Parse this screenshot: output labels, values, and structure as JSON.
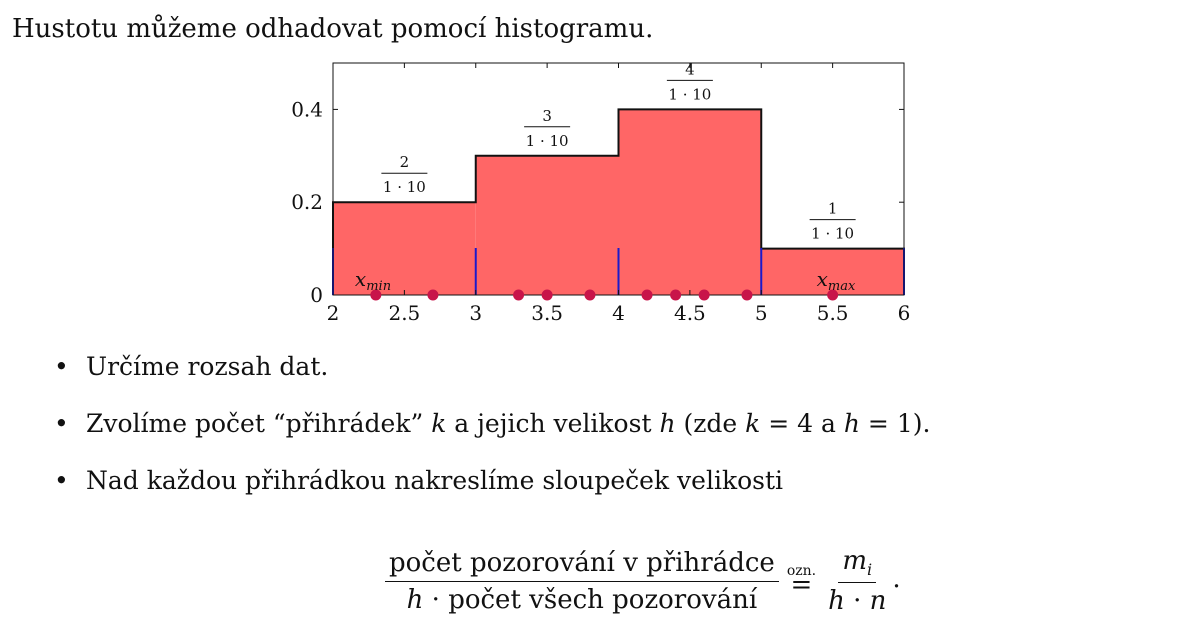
{
  "intro": "Hustotu můžeme odhadovat pomocí histogramu.",
  "chart_data": {
    "type": "bar",
    "bins": [
      {
        "from": 2,
        "to": 3,
        "value": 0.2,
        "numerator": "2",
        "denominator": "1 · 10"
      },
      {
        "from": 3,
        "to": 4,
        "value": 0.3,
        "numerator": "3",
        "denominator": "1 · 10"
      },
      {
        "from": 4,
        "to": 5,
        "value": 0.4,
        "numerator": "4",
        "denominator": "1 · 10"
      },
      {
        "from": 5,
        "to": 6,
        "value": 0.1,
        "numerator": "1",
        "denominator": "1 · 10"
      }
    ],
    "points": [
      2.3,
      2.7,
      3.3,
      3.5,
      3.8,
      4.2,
      4.4,
      4.6,
      4.9,
      5.5
    ],
    "xlim": [
      2,
      6
    ],
    "ylim": [
      0,
      0.5
    ],
    "xticks": [
      "2",
      "2.5",
      "3",
      "3.5",
      "4",
      "4.5",
      "5",
      "5.5",
      "6"
    ],
    "yticks": [
      "0",
      "0.2",
      "0.4"
    ],
    "annotations": {
      "xmin": {
        "symbol": "x",
        "sub": "min",
        "at": 2
      },
      "xmax": {
        "symbol": "x",
        "sub": "max",
        "at": 6
      }
    },
    "colors": {
      "bar": "#ff6666",
      "point": "#c8144a",
      "divider": "#1a1acc"
    }
  },
  "bullets": [
    {
      "text": "Určíme rozsah dat."
    },
    {
      "pre": "Zvolíme počet “přihrádek” ",
      "k": "k",
      "mid1": " a jejich velikost ",
      "h": "h",
      "mid2": " (zde ",
      "k2": "k",
      "eq1": " = 4 a ",
      "h2": "h",
      "eq2": " = 1)."
    },
    {
      "text": "Nad každou přihrádkou nakreslíme sloupeček velikosti"
    }
  ],
  "formula": {
    "numerator": "počet pozorování v přihrádce",
    "den_h": "h",
    "den_rest": " · počet všech pozorování",
    "ozn": "ozn.",
    "equals": "=",
    "rhs_num_m": "m",
    "rhs_num_sub": "i",
    "rhs_den_h": "h",
    "rhs_den_mid": " · ",
    "rhs_den_n": "n",
    "period": "."
  }
}
